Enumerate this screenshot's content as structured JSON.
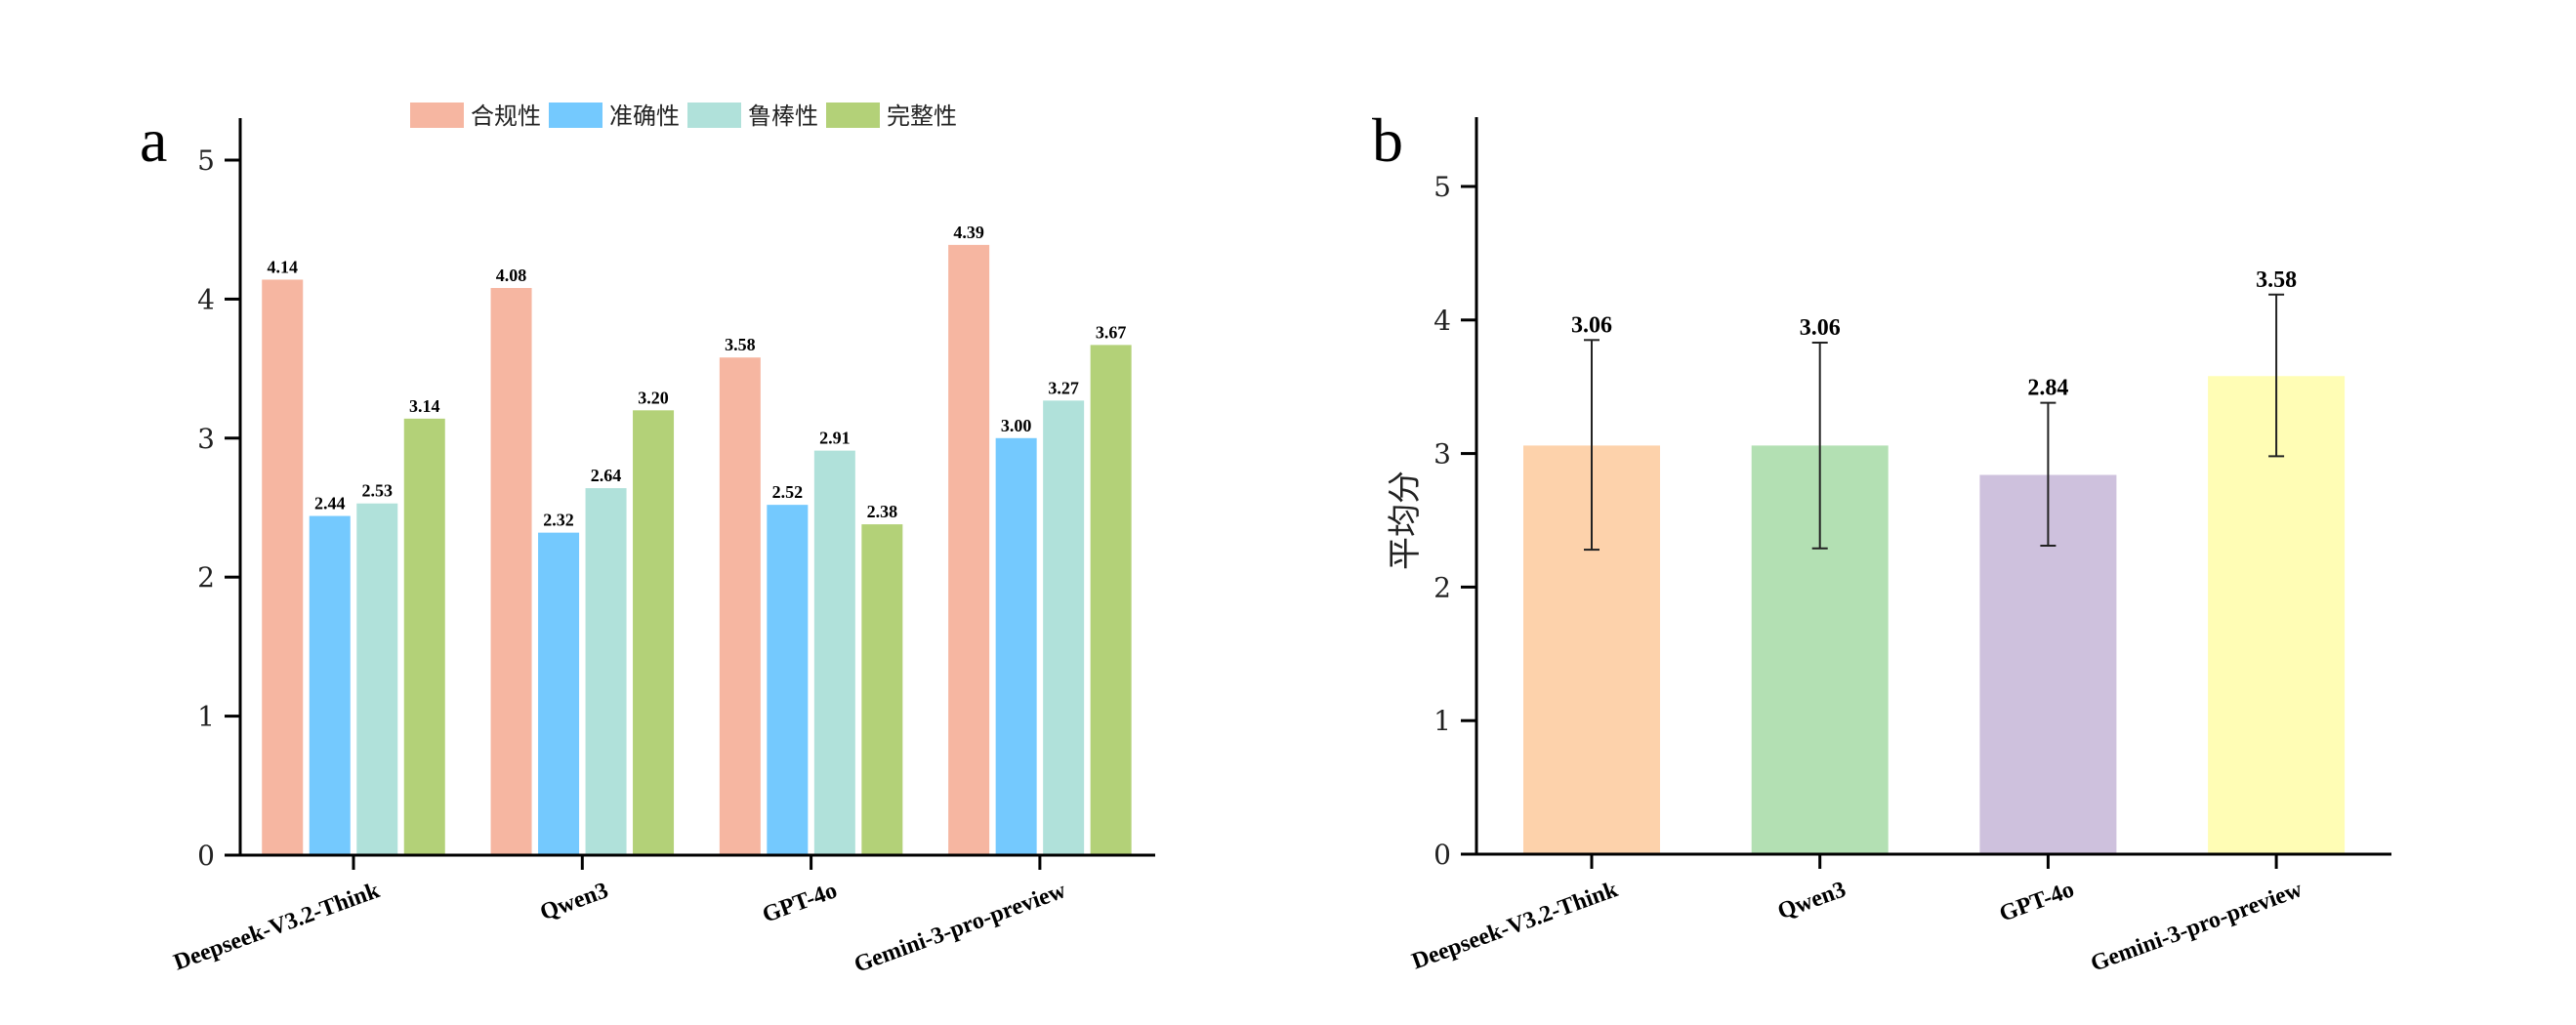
{
  "chart_data": [
    {
      "panel": "a",
      "type": "bar",
      "title": "",
      "xlabel": "",
      "ylabel": "",
      "ylim": [
        0,
        5
      ],
      "yticks": [
        "0",
        "1",
        "2",
        "3",
        "4",
        "5"
      ],
      "grid": false,
      "legend_position": "top-center",
      "categories": [
        "Deepseek-V3.2-Think",
        "Qwen3",
        "GPT-4o",
        "Gemini-3-pro-preview"
      ],
      "series": [
        {
          "name": "合规性",
          "color": "#F6B6A1",
          "values": [
            4.14,
            4.08,
            3.58,
            4.39
          ],
          "labels": [
            "4.14",
            "4.08",
            "3.58",
            "4.39"
          ]
        },
        {
          "name": "准确性",
          "color": "#74C9FE",
          "values": [
            2.44,
            2.32,
            2.52,
            3.0
          ],
          "labels": [
            "2.44",
            "2.32",
            "2.52",
            "3.00"
          ]
        },
        {
          "name": "鲁棒性",
          "color": "#B0E1DA",
          "values": [
            2.53,
            2.64,
            2.91,
            3.27
          ],
          "labels": [
            "2.53",
            "2.64",
            "2.91",
            "3.27"
          ]
        },
        {
          "name": "完整性",
          "color": "#B3D178",
          "values": [
            3.14,
            3.2,
            2.38,
            3.67
          ],
          "labels": [
            "3.14",
            "3.20",
            "2.38",
            "3.67"
          ]
        }
      ]
    },
    {
      "panel": "b",
      "type": "bar",
      "title": "",
      "xlabel": "",
      "ylabel": "平均分",
      "ylim": [
        0,
        5
      ],
      "yticks": [
        "0",
        "1",
        "2",
        "3",
        "4",
        "5"
      ],
      "grid": false,
      "categories": [
        "Deepseek-V3.2-Think",
        "Qwen3",
        "GPT-4o",
        "Gemini-3-pro-preview"
      ],
      "values": [
        3.06,
        3.06,
        2.84,
        3.58
      ],
      "labels": [
        "3.06",
        "3.06",
        "2.84",
        "3.58"
      ],
      "colors": [
        "#FDD2AB",
        "#B3E0B3",
        "#CEC1DD",
        "#FFFDB5"
      ],
      "error_bars": {
        "upper": [
          3.85,
          3.83,
          3.38,
          4.19
        ],
        "lower": [
          2.28,
          2.29,
          2.31,
          2.98
        ]
      }
    }
  ],
  "panels": {
    "a_letter": "a",
    "b_letter": "b"
  }
}
